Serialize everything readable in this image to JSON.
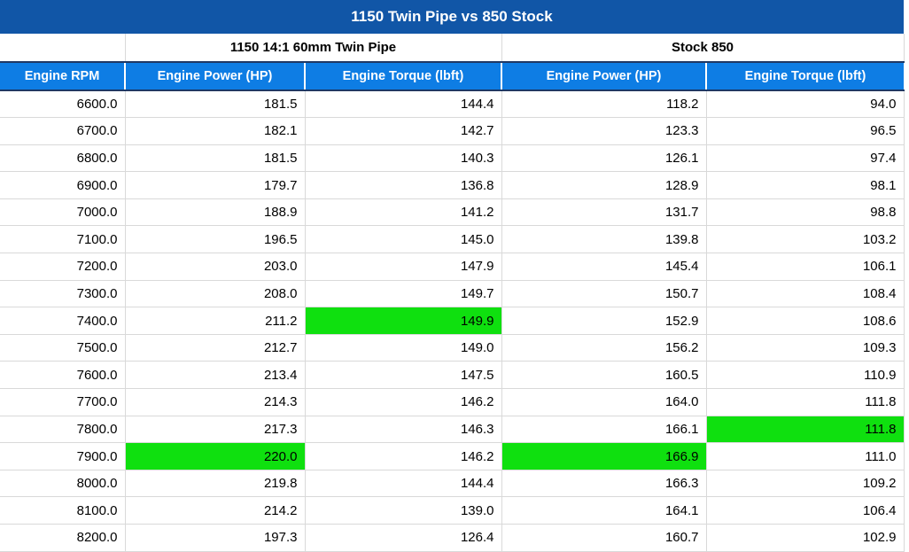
{
  "title": "1150 Twin Pipe vs 850 Stock",
  "groups": [
    {
      "label": "1150 14:1 60mm Twin Pipe"
    },
    {
      "label": "Stock 850"
    }
  ],
  "columns": [
    "Engine RPM",
    "Engine Power (HP)",
    "Engine Torque (lbft)",
    "Engine Power (HP)",
    "Engine Torque (lbft)"
  ],
  "colors": {
    "title_bg": "#1156A7",
    "header_bg": "#0E7DE4",
    "highlight_green": "#0FE00F",
    "gridline": "#D9D9D9",
    "header_border": "#1F3864"
  },
  "chart_data": {
    "type": "table",
    "title": "1150 Twin Pipe vs 850 Stock",
    "categories": [
      6600.0,
      6700.0,
      6800.0,
      6900.0,
      7000.0,
      7100.0,
      7200.0,
      7300.0,
      7400.0,
      7500.0,
      7600.0,
      7700.0,
      7800.0,
      7900.0,
      8000.0,
      8100.0,
      8200.0
    ],
    "series": [
      {
        "name": "1150 14:1 60mm Twin Pipe - Engine Power (HP)",
        "values": [
          181.5,
          182.1,
          181.5,
          179.7,
          188.9,
          196.5,
          203.0,
          208.0,
          211.2,
          212.7,
          213.4,
          214.3,
          217.3,
          220.0,
          219.8,
          214.2,
          197.3
        ]
      },
      {
        "name": "1150 14:1 60mm Twin Pipe - Engine Torque (lbft)",
        "values": [
          144.4,
          142.7,
          140.3,
          136.8,
          141.2,
          145.0,
          147.9,
          149.7,
          149.9,
          149.0,
          147.5,
          146.2,
          146.3,
          146.2,
          144.4,
          139.0,
          126.4
        ]
      },
      {
        "name": "Stock 850 - Engine Power (HP)",
        "values": [
          118.2,
          123.3,
          126.1,
          128.9,
          131.7,
          139.8,
          145.4,
          150.7,
          152.9,
          156.2,
          160.5,
          164.0,
          166.1,
          166.9,
          166.3,
          164.1,
          160.7
        ]
      },
      {
        "name": "Stock 850 - Engine Torque (lbft)",
        "values": [
          94.0,
          96.5,
          97.4,
          98.1,
          98.8,
          103.2,
          106.1,
          108.4,
          108.6,
          109.3,
          110.9,
          111.8,
          111.8,
          111.0,
          109.2,
          106.4,
          102.9
        ]
      }
    ],
    "highlighted_maxima": [
      {
        "rpm": 7400.0,
        "column": "Twin Pipe Engine Torque (lbft)",
        "value": 149.9
      },
      {
        "rpm": 7900.0,
        "column": "Twin Pipe Engine Power (HP)",
        "value": 220.0
      },
      {
        "rpm": 7900.0,
        "column": "Stock 850 Engine Power (HP)",
        "value": 166.9
      },
      {
        "rpm": 7800.0,
        "column": "Stock 850 Engine Torque (lbft)",
        "value": 111.8
      }
    ]
  },
  "rows": [
    {
      "rpm": "6600.0",
      "twin_hp": "181.5",
      "twin_tq": "144.4",
      "stock_hp": "118.2",
      "stock_tq": "94.0",
      "highlight": []
    },
    {
      "rpm": "6700.0",
      "twin_hp": "182.1",
      "twin_tq": "142.7",
      "stock_hp": "123.3",
      "stock_tq": "96.5",
      "highlight": []
    },
    {
      "rpm": "6800.0",
      "twin_hp": "181.5",
      "twin_tq": "140.3",
      "stock_hp": "126.1",
      "stock_tq": "97.4",
      "highlight": []
    },
    {
      "rpm": "6900.0",
      "twin_hp": "179.7",
      "twin_tq": "136.8",
      "stock_hp": "128.9",
      "stock_tq": "98.1",
      "highlight": []
    },
    {
      "rpm": "7000.0",
      "twin_hp": "188.9",
      "twin_tq": "141.2",
      "stock_hp": "131.7",
      "stock_tq": "98.8",
      "highlight": []
    },
    {
      "rpm": "7100.0",
      "twin_hp": "196.5",
      "twin_tq": "145.0",
      "stock_hp": "139.8",
      "stock_tq": "103.2",
      "highlight": []
    },
    {
      "rpm": "7200.0",
      "twin_hp": "203.0",
      "twin_tq": "147.9",
      "stock_hp": "145.4",
      "stock_tq": "106.1",
      "highlight": []
    },
    {
      "rpm": "7300.0",
      "twin_hp": "208.0",
      "twin_tq": "149.7",
      "stock_hp": "150.7",
      "stock_tq": "108.4",
      "highlight": []
    },
    {
      "rpm": "7400.0",
      "twin_hp": "211.2",
      "twin_tq": "149.9",
      "stock_hp": "152.9",
      "stock_tq": "108.6",
      "highlight": [
        "twin_tq"
      ]
    },
    {
      "rpm": "7500.0",
      "twin_hp": "212.7",
      "twin_tq": "149.0",
      "stock_hp": "156.2",
      "stock_tq": "109.3",
      "highlight": []
    },
    {
      "rpm": "7600.0",
      "twin_hp": "213.4",
      "twin_tq": "147.5",
      "stock_hp": "160.5",
      "stock_tq": "110.9",
      "highlight": []
    },
    {
      "rpm": "7700.0",
      "twin_hp": "214.3",
      "twin_tq": "146.2",
      "stock_hp": "164.0",
      "stock_tq": "111.8",
      "highlight": []
    },
    {
      "rpm": "7800.0",
      "twin_hp": "217.3",
      "twin_tq": "146.3",
      "stock_hp": "166.1",
      "stock_tq": "111.8",
      "highlight": [
        "stock_tq"
      ]
    },
    {
      "rpm": "7900.0",
      "twin_hp": "220.0",
      "twin_tq": "146.2",
      "stock_hp": "166.9",
      "stock_tq": "111.0",
      "highlight": [
        "twin_hp",
        "stock_hp"
      ]
    },
    {
      "rpm": "8000.0",
      "twin_hp": "219.8",
      "twin_tq": "144.4",
      "stock_hp": "166.3",
      "stock_tq": "109.2",
      "highlight": []
    },
    {
      "rpm": "8100.0",
      "twin_hp": "214.2",
      "twin_tq": "139.0",
      "stock_hp": "164.1",
      "stock_tq": "106.4",
      "highlight": []
    },
    {
      "rpm": "8200.0",
      "twin_hp": "197.3",
      "twin_tq": "126.4",
      "stock_hp": "160.7",
      "stock_tq": "102.9",
      "highlight": []
    }
  ]
}
